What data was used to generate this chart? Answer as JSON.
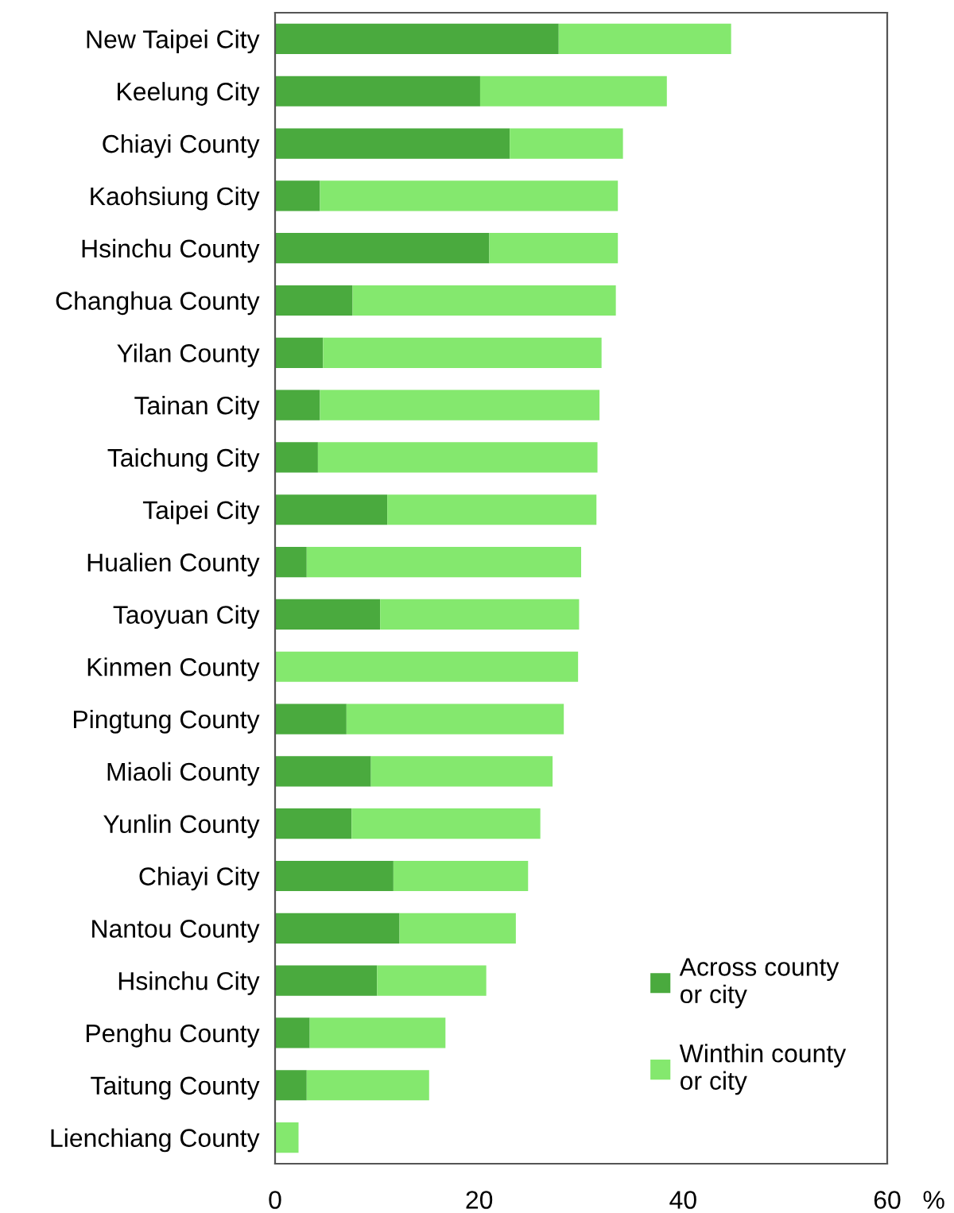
{
  "chart_data": {
    "type": "bar",
    "orientation": "horizontal",
    "stacked": true,
    "xlabel": "%",
    "categories": [
      "New Taipei City",
      "Keelung City",
      "Chiayi County",
      "Kaohsiung City",
      "Hsinchu County",
      "Changhua County",
      "Yilan County",
      "Tainan City",
      "Taichung City",
      "Taipei City",
      "Hualien County",
      "Taoyuan City",
      "Kinmen County",
      "Pingtung County",
      "Miaoli County",
      "Yunlin County",
      "Chiayi City",
      "Nantou County",
      "Hsinchu City",
      "Penghu County",
      "Taitung County",
      "Lienchiang County"
    ],
    "series": [
      {
        "name": "Across county or city",
        "color": "#4aaa3e",
        "values": [
          27.8,
          20.1,
          23.0,
          4.4,
          21.0,
          7.6,
          4.7,
          4.4,
          4.2,
          11.0,
          3.1,
          10.3,
          0,
          7.0,
          9.4,
          7.5,
          11.6,
          12.2,
          10.0,
          3.4,
          3.1,
          0
        ]
      },
      {
        "name": "Winthin county or city",
        "color": "#84e86e",
        "values": [
          16.9,
          18.3,
          11.1,
          29.2,
          12.6,
          25.8,
          27.3,
          27.4,
          27.4,
          20.5,
          26.9,
          19.5,
          29.7,
          21.3,
          17.8,
          18.5,
          13.2,
          11.4,
          10.7,
          13.3,
          12.0,
          2.3
        ]
      }
    ],
    "xlim": [
      0,
      60
    ],
    "xticks": [
      0,
      20,
      40,
      60
    ],
    "grid": false,
    "legend": "bottom right"
  }
}
